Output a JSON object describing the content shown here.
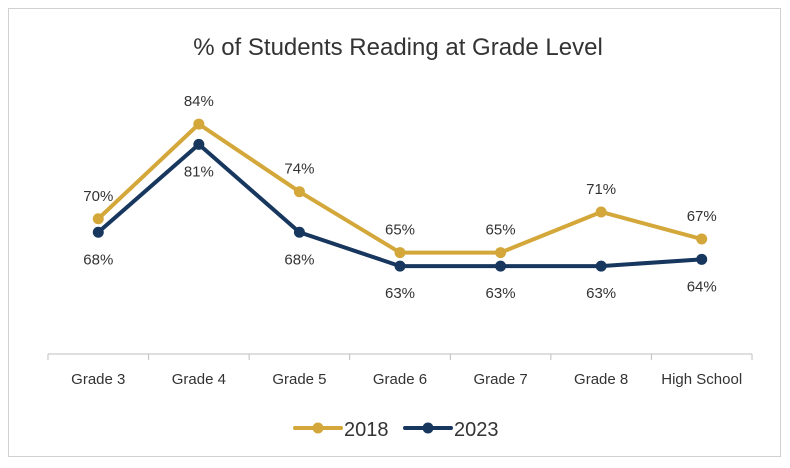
{
  "chart_data": {
    "type": "line",
    "title": "% of Students Reading at Grade Level",
    "categories": [
      "Grade 3",
      "Grade 4",
      "Grade 5",
      "Grade 6",
      "Grade 7",
      "Grade 8",
      "High School"
    ],
    "series": [
      {
        "name": "2018",
        "color": "#D4A73A",
        "values": [
          70,
          84,
          74,
          65,
          65,
          71,
          67
        ],
        "labels": [
          "70%",
          "84%",
          "74%",
          "65%",
          "65%",
          "71%",
          "67%"
        ],
        "label_position": "above"
      },
      {
        "name": "2023",
        "color": "#17375E",
        "values": [
          68,
          81,
          68,
          63,
          63,
          63,
          64
        ],
        "labels": [
          "68%",
          "81%",
          "68%",
          "63%",
          "63%",
          "63%",
          "64%"
        ],
        "label_position": "below"
      }
    ],
    "ylim": [
      50,
      90
    ],
    "grid": false,
    "y_axis_visible": false,
    "legend_position": "bottom"
  }
}
